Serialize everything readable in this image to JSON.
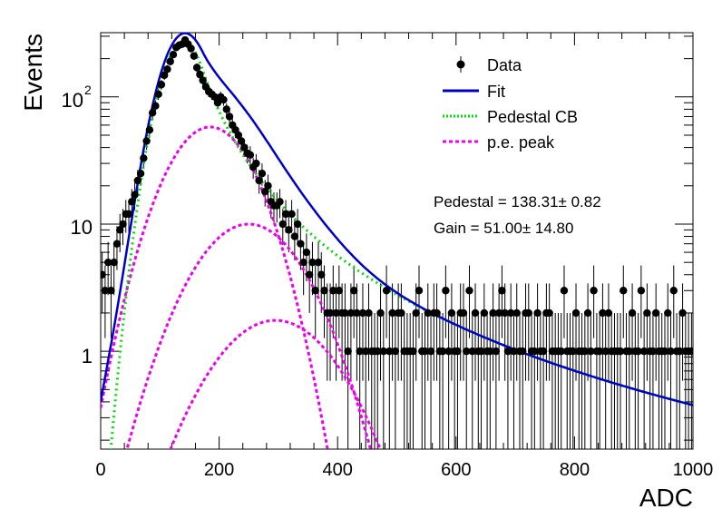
{
  "chart_data": {
    "type": "scatter",
    "title": "",
    "xlabel": "ADC",
    "ylabel": "Events",
    "xlim": [
      0,
      1000
    ],
    "ylim": [
      0.17,
      320
    ],
    "yscale": "log",
    "x_ticks": [
      "0",
      "200",
      "400",
      "600",
      "800",
      "1000"
    ],
    "y_ticks": [
      {
        "value": 1,
        "label": "1"
      },
      {
        "value": 10,
        "label": "10"
      },
      {
        "value": 100,
        "label": "10",
        "exponent": "2"
      }
    ],
    "grid": false,
    "legend_position": "top-right",
    "legend": [
      "Data",
      "Fit",
      "Pedestal CB",
      "p.e. peak"
    ],
    "annotations": {
      "pedestal": "Pedestal = 138.31± 0.82",
      "gain": "Gain = 51.00± 14.80"
    },
    "colors": {
      "data": "#000000",
      "fit": "#0000cc",
      "pedestal": "#00dd00",
      "pe": "#ee00ee"
    },
    "data_series": {
      "name": "Data",
      "x": [
        0,
        5,
        10,
        15,
        20,
        25,
        30,
        35,
        40,
        45,
        50,
        55,
        60,
        65,
        70,
        75,
        80,
        85,
        90,
        95,
        100,
        105,
        110,
        115,
        120,
        125,
        130,
        135,
        140,
        145,
        150,
        155,
        160,
        165,
        170,
        175,
        180,
        185,
        190,
        195,
        200,
        205,
        210,
        215,
        220,
        225,
        230,
        235,
        240,
        245,
        250,
        255,
        260,
        265,
        270,
        275,
        280,
        285,
        290,
        295,
        300,
        305,
        310,
        315,
        320,
        325,
        330,
        335,
        340,
        345,
        350,
        355,
        360,
        365,
        370,
        375,
        380,
        385,
        390,
        395,
        400,
        405,
        410,
        415,
        420,
        425,
        430,
        435,
        440,
        445,
        450,
        455,
        460,
        465,
        470,
        475,
        480,
        485,
        490,
        495,
        500,
        505,
        510,
        515,
        520,
        525,
        530,
        535,
        540,
        545,
        550,
        555,
        560,
        565,
        570,
        575,
        580,
        585,
        590,
        595,
        600,
        605,
        610,
        615,
        620,
        625,
        630,
        635,
        640,
        645,
        650,
        655,
        660,
        665,
        670,
        675,
        680,
        685,
        690,
        695,
        700,
        705,
        710,
        715,
        720,
        725,
        730,
        735,
        740,
        745,
        750,
        755,
        760,
        765,
        770,
        775,
        780,
        785,
        790,
        795,
        800,
        805,
        810,
        815,
        820,
        825,
        830,
        835,
        840,
        845,
        850,
        855,
        860,
        865,
        870,
        875,
        880,
        885,
        890,
        895,
        900,
        905,
        910,
        915,
        920,
        925,
        930,
        935,
        940,
        945,
        950,
        955,
        960,
        965,
        970,
        975,
        980,
        985,
        990,
        995
      ],
      "y": [
        4,
        3,
        5,
        3,
        5,
        7,
        9,
        10,
        12,
        12,
        15,
        17,
        22,
        25,
        33,
        45,
        55,
        75,
        85,
        105,
        125,
        148,
        165,
        190,
        215,
        245,
        255,
        260,
        280,
        260,
        240,
        210,
        170,
        150,
        135,
        120,
        110,
        105,
        100,
        90,
        100,
        95,
        80,
        70,
        60,
        55,
        50,
        45,
        40,
        36,
        35,
        28,
        30,
        22,
        25,
        18,
        20,
        15,
        14,
        14,
        15,
        10,
        12,
        9,
        12,
        8,
        10,
        7,
        5,
        6,
        4,
        5,
        3,
        5,
        4,
        3,
        2,
        2,
        3,
        2,
        3,
        2,
        2,
        1,
        2,
        3,
        2,
        1,
        2,
        1,
        2,
        1,
        1,
        1,
        2,
        1,
        3,
        1,
        2,
        1,
        2,
        2,
        1,
        1,
        1,
        1,
        2,
        3,
        1,
        1,
        2,
        1,
        2,
        2,
        1,
        1,
        3,
        1,
        2,
        1,
        1,
        2,
        2,
        1,
        3,
        1,
        2,
        1,
        1,
        2,
        1,
        1,
        2,
        1,
        2,
        3,
        2,
        1,
        2,
        1,
        2,
        1,
        1,
        2,
        2,
        1,
        1,
        2,
        1,
        1,
        2,
        2,
        1,
        1,
        1,
        1,
        3,
        1,
        1,
        1,
        2,
        1,
        1,
        1,
        2,
        1,
        3,
        1,
        1,
        2,
        1,
        2,
        1,
        1,
        1,
        1,
        3,
        1,
        1,
        2,
        1,
        1,
        3,
        1,
        2,
        1,
        1,
        2,
        1,
        1,
        1,
        2,
        1,
        3,
        1,
        1,
        2,
        1,
        1,
        1
      ]
    },
    "fit_model": {
      "pedestal": {
        "mean": 140,
        "sigma": 32,
        "amplitude": 270,
        "tail_alpha": 1.0,
        "tail_n": 2.5
      },
      "pe_peaks": [
        {
          "mean": 185,
          "sigma": 58,
          "amplitude": 58
        },
        {
          "mean": 250,
          "sigma": 72,
          "amplitude": 10
        },
        {
          "mean": 295,
          "sigma": 82,
          "amplitude": 1.75
        }
      ]
    }
  }
}
